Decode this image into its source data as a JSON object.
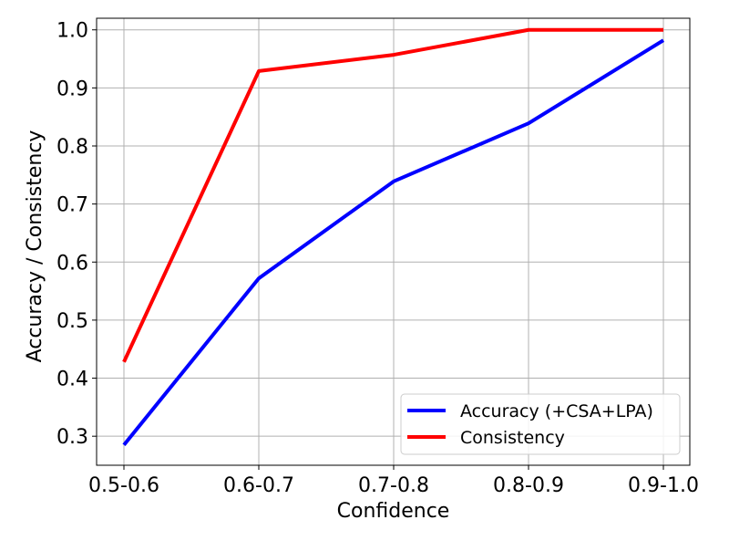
{
  "chart_data": {
    "type": "line",
    "title": "",
    "xlabel": "Confidence",
    "ylabel": "Accuracy / Consistency",
    "categories": [
      "0.5-0.6",
      "0.6-0.7",
      "0.7-0.8",
      "0.8-0.9",
      "0.9-1.0"
    ],
    "ylim": [
      0.25,
      1.02
    ],
    "yticks": [
      0.3,
      0.4,
      0.5,
      0.6,
      0.7,
      0.8,
      0.9,
      1.0
    ],
    "grid": true,
    "legend_position": "lower-right",
    "series": [
      {
        "name": "Accuracy (+CSA+LPA)",
        "color": "#0000ff",
        "values": [
          0.285,
          0.572,
          0.739,
          0.839,
          0.982
        ]
      },
      {
        "name": "Consistency",
        "color": "#ff0000",
        "values": [
          0.428,
          0.929,
          0.957,
          1.0,
          1.0
        ]
      }
    ]
  }
}
